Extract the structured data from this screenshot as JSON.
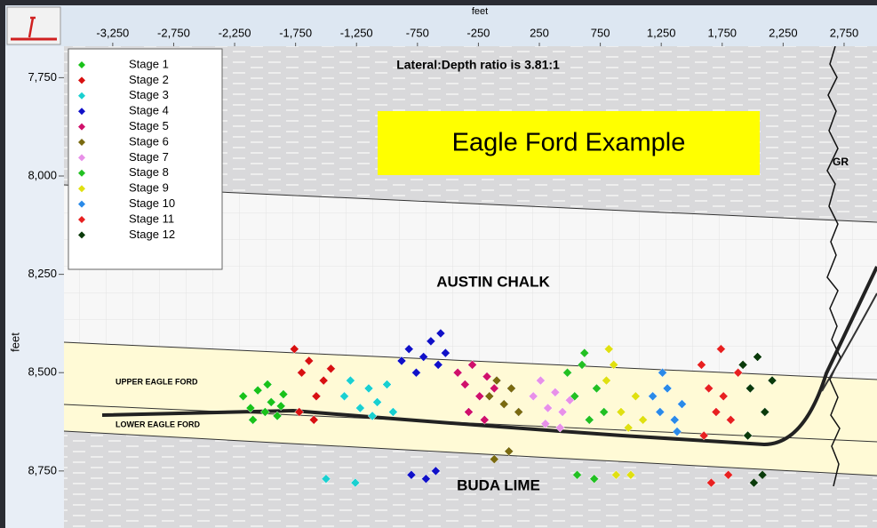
{
  "chart_data": {
    "type": "scatter",
    "title": "Eagle Ford Example",
    "annotations": [
      "Lateral:Depth ratio is 3.81:1",
      "AUSTIN CHALK",
      "UPPER EAGLE FORD",
      "LOWER EAGLE FORD",
      "BUDA LIME",
      "GR"
    ],
    "xlabel": "feet",
    "ylabel": "feet",
    "xlim": [
      -3650,
      3020
    ],
    "ylim": [
      7670,
      8895
    ],
    "y_inverted": true,
    "xticks": [
      {
        "value": -3250,
        "label": "-3,250"
      },
      {
        "value": -2750,
        "label": "-2,750"
      },
      {
        "value": -2250,
        "label": "-2,250"
      },
      {
        "value": -1750,
        "label": "-1,750"
      },
      {
        "value": -1250,
        "label": "-1,250"
      },
      -750,
      -250,
      250,
      750,
      {
        "value": 1250,
        "label": "1,250"
      },
      {
        "value": 1750,
        "label": "1,750"
      },
      {
        "value": 2250,
        "label": "2,250"
      },
      {
        "value": 2750,
        "label": "2,750"
      }
    ],
    "yticks": [
      {
        "value": 7750,
        "label": "7,750"
      },
      {
        "value": 8000,
        "label": "8,000"
      },
      {
        "value": 8250,
        "label": "8,250"
      },
      {
        "value": 8500,
        "label": "8,500"
      },
      {
        "value": 8750,
        "label": "8,750"
      }
    ],
    "legend": "upper left",
    "series": [
      {
        "name": "Stage 1",
        "color": "#19c219",
        "x": [
          -2180,
          -2120,
          -2060,
          -2000,
          -1950,
          -1900,
          -1850,
          -2100,
          -1980,
          -1870
        ],
        "values": [
          8560,
          8590,
          8545,
          8600,
          8575,
          8610,
          8555,
          8620,
          8530,
          8585
        ]
      },
      {
        "name": "Stage 2",
        "color": "#d81010",
        "x": [
          -1760,
          -1700,
          -1640,
          -1580,
          -1520,
          -1460,
          -1720,
          -1600
        ],
        "values": [
          8440,
          8500,
          8470,
          8560,
          8520,
          8490,
          8600,
          8620
        ]
      },
      {
        "name": "Stage 3",
        "color": "#19d0d0",
        "x": [
          -1350,
          -1300,
          -1220,
          -1150,
          -1080,
          -1000,
          -950,
          -1260,
          -1120,
          -1500
        ],
        "values": [
          8560,
          8520,
          8590,
          8540,
          8575,
          8530,
          8600,
          8780,
          8610,
          8770
        ]
      },
      {
        "name": "Stage 4",
        "color": "#1010c8",
        "x": [
          -880,
          -820,
          -760,
          -700,
          -640,
          -580,
          -520,
          -800,
          -680,
          -600,
          -560
        ],
        "values": [
          8470,
          8440,
          8500,
          8460,
          8420,
          8480,
          8450,
          8760,
          8770,
          8750,
          8400
        ]
      },
      {
        "name": "Stage 5",
        "color": "#d0106a",
        "x": [
          -420,
          -360,
          -300,
          -240,
          -180,
          -120,
          -330,
          -200
        ],
        "values": [
          8500,
          8530,
          8480,
          8560,
          8510,
          8540,
          8600,
          8620
        ]
      },
      {
        "name": "Stage 6",
        "color": "#7a6a10",
        "x": [
          -160,
          -100,
          -40,
          20,
          80,
          -120,
          0
        ],
        "values": [
          8560,
          8520,
          8580,
          8540,
          8600,
          8720,
          8700
        ]
      },
      {
        "name": "Stage 7",
        "color": "#e890e8",
        "x": [
          200,
          260,
          320,
          380,
          440,
          500,
          300,
          420
        ],
        "values": [
          8560,
          8520,
          8590,
          8550,
          8600,
          8570,
          8630,
          8640
        ]
      },
      {
        "name": "Stage 8",
        "color": "#22c022",
        "x": [
          480,
          540,
          600,
          660,
          720,
          780,
          560,
          700,
          620
        ],
        "values": [
          8500,
          8560,
          8480,
          8620,
          8540,
          8600,
          8760,
          8770,
          8450
        ]
      },
      {
        "name": "Stage 9",
        "color": "#e0e010",
        "x": [
          800,
          860,
          920,
          980,
          1040,
          1100,
          880,
          1000,
          820
        ],
        "values": [
          8520,
          8480,
          8600,
          8640,
          8560,
          8620,
          8760,
          8760,
          8440
        ]
      },
      {
        "name": "Stage 10",
        "color": "#2a8ae8",
        "x": [
          1180,
          1240,
          1300,
          1360,
          1420,
          1260,
          1380
        ],
        "values": [
          8560,
          8600,
          8540,
          8620,
          8580,
          8500,
          8650
        ]
      },
      {
        "name": "Stage 11",
        "color": "#e82020",
        "x": [
          1580,
          1640,
          1700,
          1760,
          1820,
          1880,
          1660,
          1800,
          1740,
          1600
        ],
        "values": [
          8480,
          8540,
          8600,
          8560,
          8620,
          8500,
          8780,
          8760,
          8440,
          8660
        ]
      },
      {
        "name": "Stage 12",
        "color": "#0a3a0a",
        "x": [
          1920,
          1980,
          2040,
          2100,
          2160,
          2010,
          2080,
          1960
        ],
        "values": [
          8480,
          8540,
          8460,
          8600,
          8520,
          8780,
          8760,
          8660
        ]
      }
    ]
  }
}
